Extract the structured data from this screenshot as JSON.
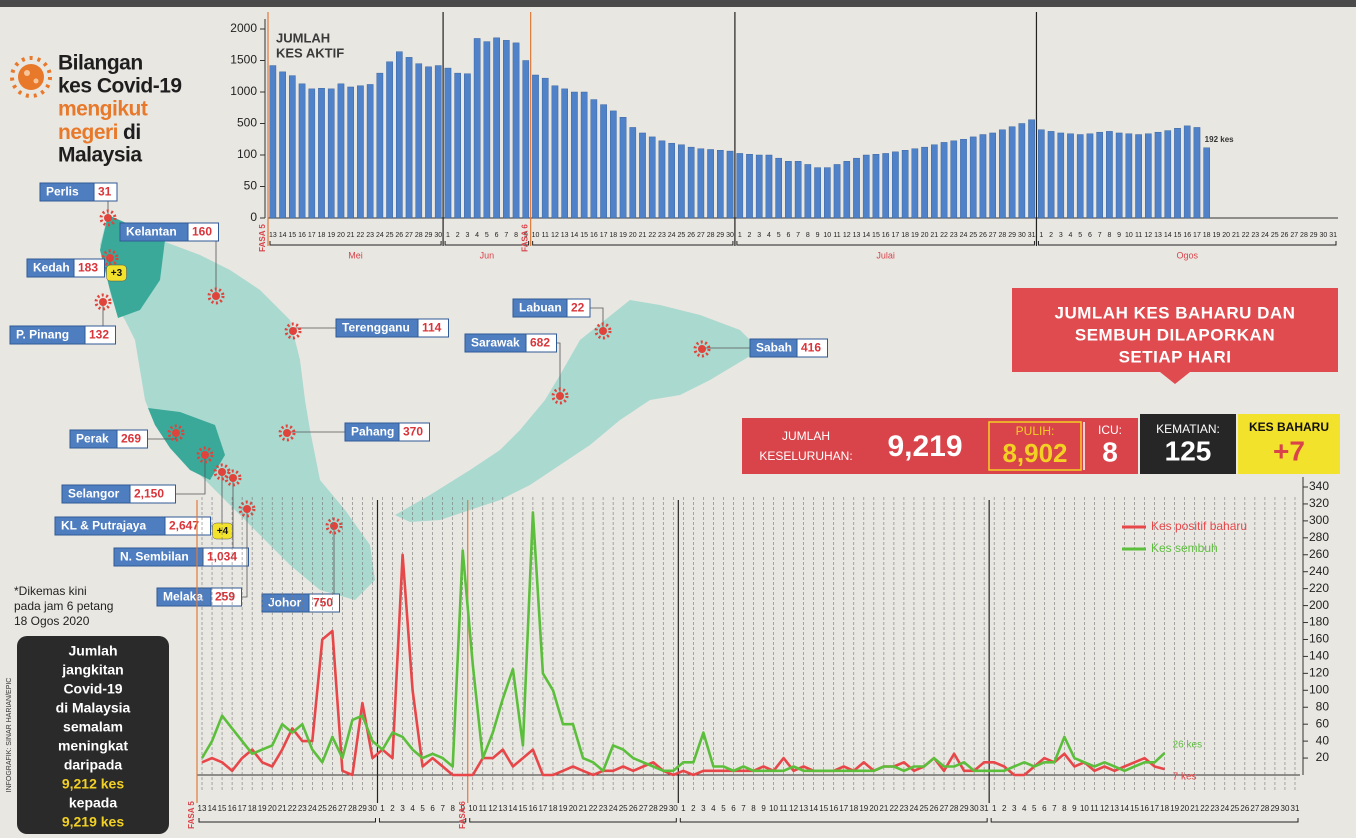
{
  "header": {
    "title": [
      "Bilangan",
      "kes Covid-19",
      "mengikut",
      "negeri",
      "di",
      "Malaysia"
    ]
  },
  "note": [
    "*Dikemas kini",
    "pada jam 6 petang",
    "18 Ogos 2020"
  ],
  "credit": "INFOGRAFIK: SINAR HARIAN/EPIC",
  "summary": {
    "lines": [
      "Jumlah",
      "jangkitan",
      "Covid-19",
      "di Malaysia",
      "semalam",
      "meningkat",
      "daripada"
    ],
    "from": "9,212 kes",
    "middle": "kepada",
    "to": "9,219 kes"
  },
  "states": [
    {
      "name": "Perlis",
      "cases": "31"
    },
    {
      "name": "Kedah",
      "cases": "183",
      "new": "+3"
    },
    {
      "name": "Kelantan",
      "cases": "160"
    },
    {
      "name": "P. Pinang",
      "cases": "132"
    },
    {
      "name": "Terengganu",
      "cases": "114"
    },
    {
      "name": "Perak",
      "cases": "269"
    },
    {
      "name": "Pahang",
      "cases": "370"
    },
    {
      "name": "Selangor",
      "cases": "2,150"
    },
    {
      "name": "KL & Putrajaya",
      "cases": "2,647",
      "new": "+4"
    },
    {
      "name": "N. Sembilan",
      "cases": "1,034"
    },
    {
      "name": "Melaka",
      "cases": "259"
    },
    {
      "name": "Johor",
      "cases": "750"
    },
    {
      "name": "Labuan",
      "cases": "22"
    },
    {
      "name": "Sarawak",
      "cases": "682"
    },
    {
      "name": "Sabah",
      "cases": "416"
    }
  ],
  "banner": [
    "JUMLAH KES BAHARU DAN",
    "SEMBUH DILAPORKAN",
    "SETIAP HARI"
  ],
  "stats": {
    "total_label": [
      "JUMLAH",
      "KESELURUHAN:"
    ],
    "total": "9,219",
    "recovered_label": "PULIH:",
    "recovered": "8,902",
    "icu_label": "ICU:",
    "icu": "8",
    "deaths_label": "KEMATIAN:",
    "deaths": "125",
    "new_label": "KES BAHARU",
    "new": "+7"
  },
  "chart_data": [
    {
      "type": "bar",
      "title": [
        "JUMLAH",
        "KES AKTIF"
      ],
      "color": "#4f82c8",
      "yscale": "piecewise",
      "ylim": [
        0,
        2000
      ],
      "yticks": [
        0,
        50,
        100,
        500,
        1000,
        1500,
        2000
      ],
      "groups": [
        {
          "phase": "FASA 5",
          "month": "Mei",
          "categories": [
            "13",
            "14",
            "15",
            "16",
            "17",
            "18",
            "19",
            "20",
            "21",
            "22",
            "23",
            "24",
            "25",
            "26",
            "27",
            "28",
            "29",
            "30"
          ]
        },
        {
          "month": "Jun",
          "categories": [
            "1",
            "2",
            "3",
            "4",
            "5",
            "6",
            "7",
            "8",
            "9"
          ]
        },
        {
          "phase": "FASA 6",
          "categories": [
            "10",
            "11",
            "12",
            "13",
            "14",
            "15",
            "16",
            "17",
            "18",
            "19",
            "20",
            "21",
            "22",
            "23",
            "24",
            "25",
            "26",
            "27",
            "28",
            "29",
            "30"
          ]
        },
        {
          "month": "Julai",
          "categories": [
            "1",
            "2",
            "3",
            "4",
            "5",
            "6",
            "7",
            "8",
            "9",
            "10",
            "11",
            "12",
            "13",
            "14",
            "15",
            "16",
            "17",
            "18",
            "19",
            "20",
            "21",
            "22",
            "23",
            "24",
            "25",
            "26",
            "27",
            "28",
            "29",
            "30",
            "31"
          ]
        },
        {
          "month": "Ogos",
          "categories": [
            "1",
            "2",
            "3",
            "4",
            "5",
            "6",
            "7",
            "8",
            "9",
            "10",
            "11",
            "12",
            "13",
            "14",
            "15",
            "16",
            "17",
            "18",
            "19",
            "20",
            "21",
            "22",
            "23",
            "24",
            "25",
            "26",
            "27",
            "28",
            "29",
            "30",
            "31"
          ]
        }
      ],
      "values": [
        1420,
        1320,
        1260,
        1130,
        1050,
        1060,
        1050,
        1130,
        1080,
        1100,
        1120,
        1300,
        1480,
        1640,
        1550,
        1450,
        1400,
        1420,
        1380,
        1300,
        1290,
        1850,
        1800,
        1860,
        1820,
        1780,
        1500,
        1270,
        1220,
        1100,
        1050,
        1000,
        1000,
        880,
        800,
        700,
        600,
        450,
        380,
        330,
        280,
        250,
        230,
        200,
        180,
        170,
        160,
        150,
        120,
        110,
        100,
        100,
        95,
        90,
        90,
        85,
        80,
        80,
        85,
        90,
        95,
        100,
        110,
        120,
        140,
        160,
        180,
        200,
        230,
        260,
        280,
        300,
        330,
        360,
        380,
        420,
        460,
        500,
        560,
        420,
        400,
        380,
        370,
        360,
        370,
        390,
        400,
        380,
        370,
        360,
        370,
        390,
        410,
        440,
        470,
        450,
        192,
        null,
        null,
        null,
        null,
        null,
        null,
        null,
        null,
        null,
        null,
        null,
        null,
        null
      ],
      "value_labels": [
        null,
        null,
        null,
        null,
        null,
        null,
        null,
        null,
        null,
        null,
        null,
        null,
        null,
        null,
        null,
        null,
        null,
        null,
        null,
        null,
        null,
        null,
        null,
        null,
        null,
        null,
        null,
        null,
        null,
        null,
        null,
        null,
        null,
        null,
        null,
        null,
        null,
        null,
        null,
        null,
        null,
        null,
        null,
        null,
        null,
        null,
        null,
        null,
        null,
        null,
        null,
        null,
        null,
        null,
        null,
        null,
        null,
        null,
        null,
        null,
        null,
        null,
        null,
        null,
        null,
        null,
        null,
        null,
        null,
        null,
        null,
        null,
        null,
        null,
        null,
        null,
        null,
        null,
        null,
        null,
        null,
        null,
        null,
        null,
        null,
        null,
        null,
        null,
        null,
        null,
        null,
        null,
        null,
        null,
        null,
        null,
        "192 kes",
        null,
        null,
        null,
        null,
        null,
        null,
        null,
        null,
        null,
        null,
        null,
        null,
        null
      ]
    },
    {
      "type": "line",
      "ylim": [
        0,
        340
      ],
      "yticks": [
        20,
        40,
        60,
        80,
        100,
        120,
        140,
        160,
        180,
        200,
        220,
        240,
        260,
        280,
        300,
        320,
        340
      ],
      "groups": [
        {
          "phase": "FASA 5",
          "categories": [
            "13",
            "14",
            "15",
            "16",
            "17",
            "18",
            "19",
            "20",
            "21",
            "22",
            "23",
            "24",
            "25",
            "26",
            "27",
            "28",
            "29",
            "30"
          ]
        },
        {
          "categories": [
            "1",
            "2",
            "3",
            "4",
            "5",
            "6",
            "7",
            "8",
            "9"
          ]
        },
        {
          "phase": "FASA 6",
          "categories": [
            "10",
            "11",
            "12",
            "13",
            "14",
            "15",
            "16",
            "17",
            "18",
            "19",
            "20",
            "21",
            "22",
            "23",
            "24",
            "25",
            "26",
            "27",
            "28",
            "29",
            "30"
          ]
        },
        {
          "categories": [
            "1",
            "2",
            "3",
            "4",
            "5",
            "6",
            "7",
            "8",
            "9",
            "10",
            "11",
            "12",
            "13",
            "14",
            "15",
            "16",
            "17",
            "18",
            "19",
            "20",
            "21",
            "22",
            "23",
            "24",
            "25",
            "26",
            "27",
            "28",
            "29",
            "30",
            "31"
          ]
        },
        {
          "categories": [
            "1",
            "2",
            "3",
            "4",
            "5",
            "6",
            "7",
            "8",
            "9",
            "10",
            "11",
            "12",
            "13",
            "14",
            "15",
            "16",
            "17",
            "18",
            "19",
            "20",
            "21",
            "22",
            "23",
            "24",
            "25",
            "26",
            "27",
            "28",
            "29",
            "30",
            "31"
          ]
        }
      ],
      "series": [
        {
          "name": "Kes positif baharu",
          "color": "#e8474a",
          "values": [
            15,
            20,
            15,
            5,
            20,
            30,
            15,
            10,
            30,
            55,
            40,
            40,
            160,
            170,
            5,
            0,
            85,
            20,
            30,
            20,
            260,
            100,
            10,
            20,
            10,
            0,
            0,
            0,
            20,
            20,
            30,
            10,
            20,
            30,
            0,
            0,
            5,
            10,
            5,
            0,
            5,
            5,
            10,
            5,
            10,
            15,
            5,
            0,
            5,
            0,
            5,
            5,
            5,
            5,
            5,
            5,
            10,
            5,
            20,
            5,
            10,
            5,
            5,
            5,
            10,
            5,
            15,
            5,
            10,
            10,
            15,
            5,
            10,
            20,
            5,
            25,
            5,
            5,
            15,
            15,
            10,
            0,
            0,
            10,
            20,
            15,
            25,
            10,
            15,
            5,
            10,
            5,
            10,
            15,
            20,
            10,
            7,
            null,
            null,
            null,
            null,
            null,
            null,
            null,
            null,
            null,
            null,
            null,
            null,
            null
          ],
          "value_labels": [
            null,
            null,
            null,
            null,
            null,
            null,
            null,
            null,
            null,
            null,
            null,
            null,
            null,
            null,
            null,
            null,
            null,
            null,
            null,
            null,
            null,
            null,
            null,
            null,
            null,
            null,
            null,
            null,
            null,
            null,
            null,
            null,
            null,
            null,
            null,
            null,
            null,
            null,
            null,
            null,
            null,
            null,
            null,
            null,
            null,
            null,
            null,
            null,
            null,
            null,
            null,
            null,
            null,
            null,
            null,
            null,
            null,
            null,
            null,
            null,
            null,
            null,
            null,
            null,
            null,
            null,
            null,
            null,
            null,
            null,
            null,
            null,
            null,
            null,
            null,
            null,
            null,
            null,
            null,
            null,
            null,
            null,
            null,
            null,
            null,
            null,
            null,
            null,
            null,
            null,
            null,
            null,
            null,
            null,
            null,
            null,
            "7 kes",
            null,
            null,
            null,
            null,
            null,
            null,
            null,
            null,
            null,
            null,
            null,
            null,
            null
          ]
        },
        {
          "name": "Kes sembuh",
          "color": "#5cbf3c",
          "values": [
            20,
            40,
            70,
            55,
            40,
            25,
            30,
            35,
            60,
            50,
            60,
            30,
            15,
            45,
            20,
            65,
            70,
            40,
            30,
            50,
            45,
            30,
            20,
            25,
            20,
            10,
            265,
            130,
            20,
            50,
            90,
            125,
            35,
            310,
            120,
            100,
            60,
            60,
            20,
            15,
            5,
            35,
            30,
            20,
            15,
            10,
            5,
            5,
            15,
            15,
            50,
            10,
            10,
            5,
            10,
            5,
            5,
            5,
            5,
            10,
            5,
            5,
            5,
            5,
            5,
            5,
            5,
            5,
            10,
            10,
            5,
            10,
            10,
            20,
            10,
            10,
            15,
            5,
            5,
            5,
            5,
            10,
            15,
            10,
            15,
            15,
            45,
            20,
            15,
            10,
            15,
            10,
            5,
            10,
            15,
            15,
            26,
            null,
            null,
            null,
            null,
            null,
            null,
            null,
            null,
            null,
            null,
            null,
            null,
            null
          ],
          "value_labels": [
            null,
            null,
            null,
            null,
            null,
            null,
            null,
            null,
            null,
            null,
            null,
            null,
            null,
            null,
            null,
            null,
            null,
            null,
            null,
            null,
            null,
            null,
            null,
            null,
            null,
            null,
            null,
            null,
            null,
            null,
            null,
            null,
            null,
            null,
            null,
            null,
            null,
            null,
            null,
            null,
            null,
            null,
            null,
            null,
            null,
            null,
            null,
            null,
            null,
            null,
            null,
            null,
            null,
            null,
            null,
            null,
            null,
            null,
            null,
            null,
            null,
            null,
            null,
            null,
            null,
            null,
            null,
            null,
            null,
            null,
            null,
            null,
            null,
            null,
            null,
            null,
            null,
            null,
            null,
            null,
            null,
            null,
            null,
            null,
            null,
            null,
            null,
            null,
            null,
            null,
            null,
            null,
            null,
            null,
            null,
            null,
            "26 kes",
            null,
            null,
            null,
            null,
            null,
            null,
            null,
            null,
            null,
            null,
            null,
            null,
            null
          ]
        }
      ]
    }
  ]
}
